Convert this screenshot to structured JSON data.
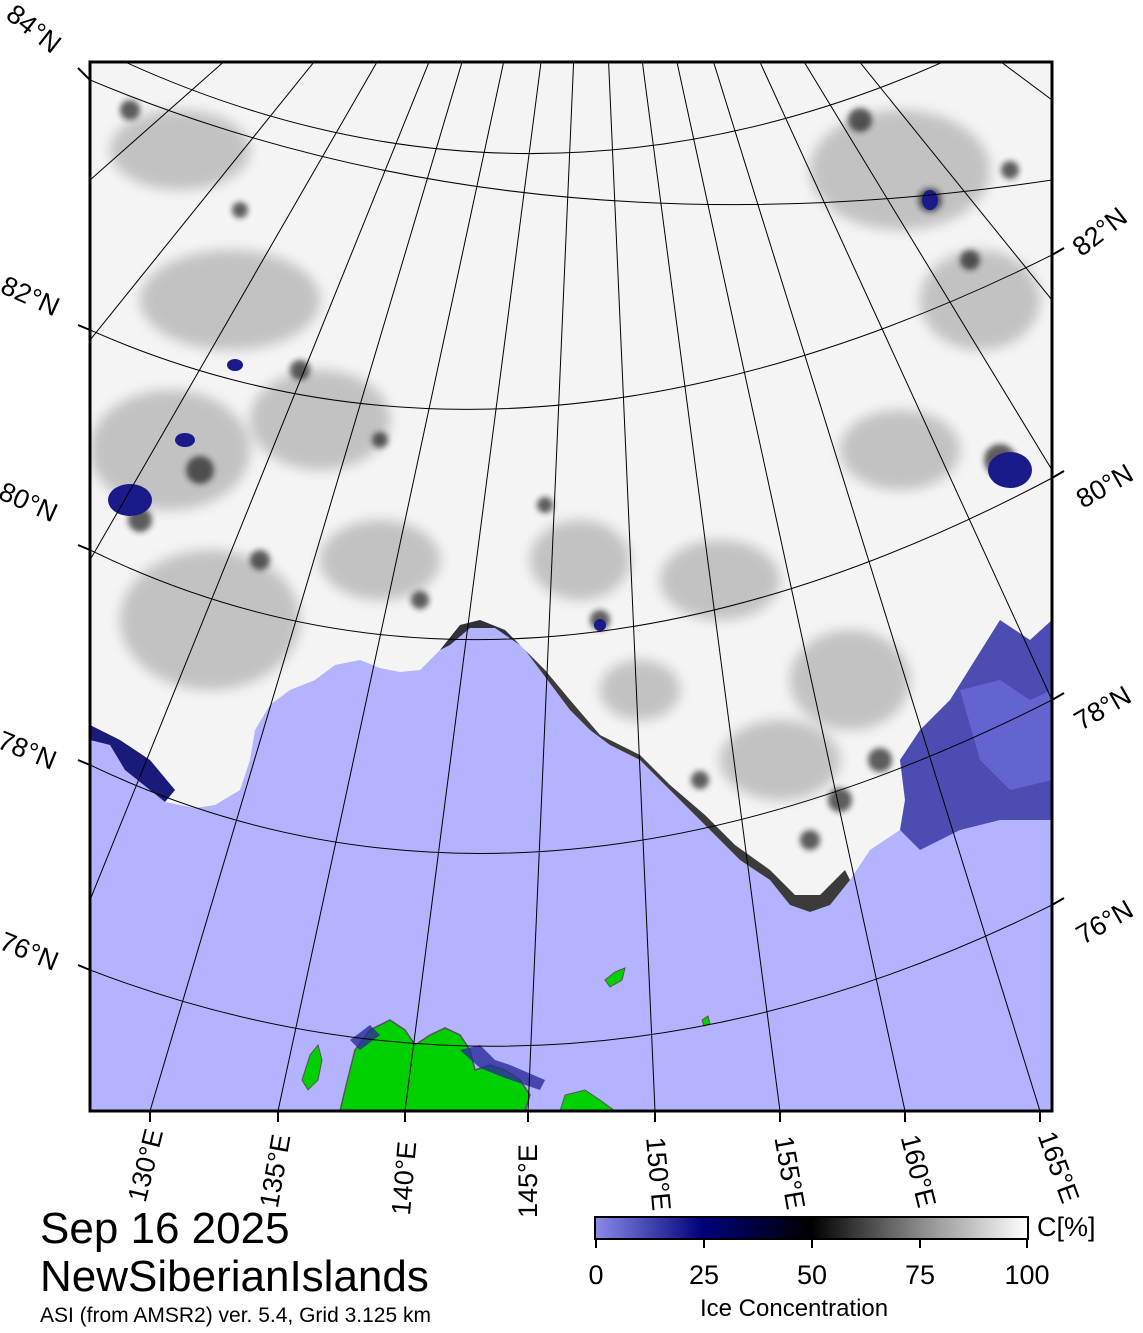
{
  "header": {
    "date": "Sep 16 2025",
    "region": "NewSiberianIslands",
    "source": "ASI (from AMSR2) ver. 5.4,  Grid 3.125 km"
  },
  "map": {
    "latitude_labels_left": [
      "84°N",
      "82°N",
      "80°N",
      "78°N",
      "76°N"
    ],
    "latitude_labels_right": [
      "82°N",
      "80°N",
      "78°N",
      "76°N"
    ],
    "longitude_labels": [
      "130°E",
      "135°E",
      "140°E",
      "145°E",
      "150°E",
      "155°E",
      "160°E",
      "165°E"
    ],
    "colors": {
      "open_water": "#b3b3ff",
      "land": "#00d000",
      "ice_high": "#ffffff",
      "ice_mid": "#000000",
      "ice_low": "#00007a"
    }
  },
  "colorbar": {
    "ticks": [
      "0",
      "25",
      "50",
      "75",
      "100"
    ],
    "unit": "C[%]",
    "title": "Ice Concentration",
    "stops": [
      "#8a8ae8",
      "#00007a",
      "#000000",
      "#7a7a7a",
      "#ffffff"
    ]
  }
}
